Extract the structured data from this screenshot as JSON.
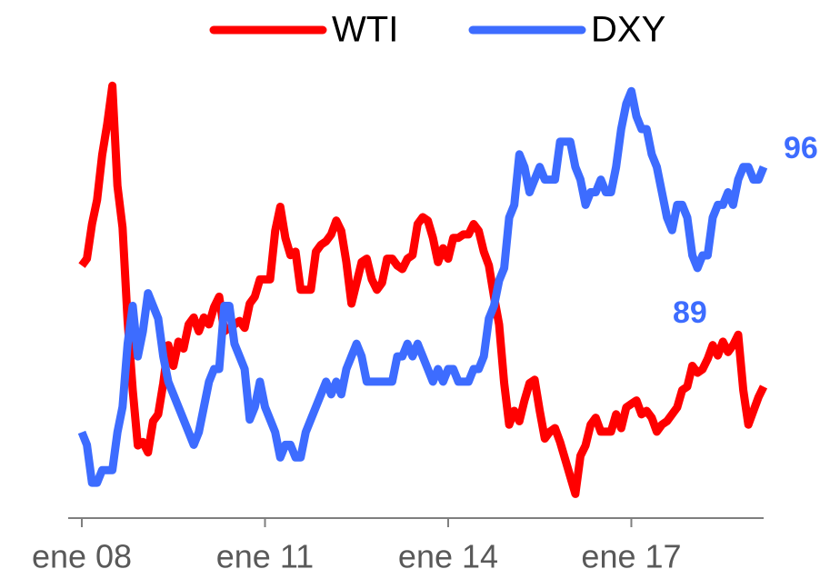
{
  "chart_data": {
    "type": "line",
    "x": [
      "2008-01",
      "2008-02",
      "2008-03",
      "2008-04",
      "2008-05",
      "2008-06",
      "2008-07",
      "2008-08",
      "2008-09",
      "2008-10",
      "2008-11",
      "2008-12",
      "2009-01",
      "2009-02",
      "2009-03",
      "2009-04",
      "2009-05",
      "2009-06",
      "2009-07",
      "2009-08",
      "2009-09",
      "2009-10",
      "2009-11",
      "2009-12",
      "2010-01",
      "2010-02",
      "2010-03",
      "2010-04",
      "2010-05",
      "2010-06",
      "2010-07",
      "2010-08",
      "2010-09",
      "2010-10",
      "2010-11",
      "2010-12",
      "2011-01",
      "2011-02",
      "2011-03",
      "2011-04",
      "2011-05",
      "2011-06",
      "2011-07",
      "2011-08",
      "2011-09",
      "2011-10",
      "2011-11",
      "2011-12",
      "2012-01",
      "2012-02",
      "2012-03",
      "2012-04",
      "2012-05",
      "2012-06",
      "2012-07",
      "2012-08",
      "2012-09",
      "2012-10",
      "2012-11",
      "2012-12",
      "2013-01",
      "2013-02",
      "2013-03",
      "2013-04",
      "2013-05",
      "2013-06",
      "2013-07",
      "2013-08",
      "2013-09",
      "2013-10",
      "2013-11",
      "2013-12",
      "2014-01",
      "2014-02",
      "2014-03",
      "2014-04",
      "2014-05",
      "2014-06",
      "2014-07",
      "2014-08",
      "2014-09",
      "2014-10",
      "2014-11",
      "2014-12",
      "2015-01",
      "2015-02",
      "2015-03",
      "2015-04",
      "2015-05",
      "2015-06",
      "2015-07",
      "2015-08",
      "2015-09",
      "2015-10",
      "2015-11",
      "2015-12",
      "2016-01",
      "2016-02",
      "2016-03",
      "2016-04",
      "2016-05",
      "2016-06",
      "2016-07",
      "2016-08",
      "2016-09",
      "2016-10",
      "2016-11",
      "2016-12",
      "2017-01",
      "2017-02",
      "2017-03",
      "2017-04",
      "2017-05",
      "2017-06",
      "2017-07",
      "2017-08",
      "2017-09",
      "2017-10",
      "2017-11",
      "2017-12",
      "2018-01",
      "2018-02",
      "2018-03",
      "2018-04",
      "2018-05",
      "2018-06",
      "2018-07",
      "2018-08",
      "2018-09",
      "2018-10",
      "2018-11",
      "2018-12",
      "2019-01",
      "2019-02",
      "2019-03"
    ],
    "series": [
      {
        "name": "WTI",
        "color": "#ff0000",
        "values": [
          93,
          95,
          105,
          112,
          125,
          134,
          145,
          116,
          104,
          77,
          57,
          41,
          42,
          39,
          48,
          50,
          59,
          70,
          64,
          71,
          69,
          76,
          78,
          74,
          78,
          76,
          81,
          84,
          74,
          75,
          76,
          77,
          75,
          82,
          84,
          89,
          89,
          89,
          103,
          110,
          101,
          96,
          97,
          86,
          86,
          86,
          97,
          99,
          100,
          102,
          106,
          103,
          94,
          82,
          88,
          94,
          95,
          89,
          86,
          88,
          95,
          95,
          93,
          92,
          95,
          96,
          105,
          107,
          106,
          101,
          94,
          98,
          95,
          101,
          101,
          102,
          102,
          105,
          103,
          97,
          93,
          84,
          76,
          59,
          47,
          51,
          48,
          54,
          59,
          60,
          51,
          43,
          45,
          46,
          42,
          37,
          32,
          27,
          38,
          41,
          47,
          49,
          45,
          45,
          45,
          50,
          46,
          52,
          53,
          54,
          50,
          51,
          49,
          45,
          47,
          48,
          50,
          52,
          57,
          58,
          64,
          62,
          63,
          66,
          70,
          67,
          71,
          68,
          70,
          73,
          57,
          47,
          51,
          55,
          58
        ]
      },
      {
        "name": "DXY",
        "color": "#3d6cff",
        "axis": "y2",
        "values": [
          76,
          75,
          72,
          72,
          73,
          73,
          73,
          76,
          78,
          83,
          86,
          82,
          84,
          87,
          86,
          85,
          82,
          80,
          79,
          78,
          77,
          76,
          75,
          76,
          78,
          80,
          81,
          81,
          86,
          86,
          83,
          82,
          81,
          77,
          78,
          80,
          78,
          77,
          76,
          74,
          75,
          75,
          74,
          74,
          76,
          77,
          78,
          79,
          80,
          79,
          80,
          79,
          81,
          82,
          83,
          82,
          80,
          80,
          80,
          80,
          80,
          80,
          82,
          82,
          83,
          82,
          83,
          82,
          81,
          80,
          81,
          80,
          81,
          81,
          80,
          80,
          80,
          81,
          81,
          82,
          85,
          86,
          88,
          89,
          93,
          94,
          98,
          97,
          95,
          96,
          97,
          96,
          96,
          96,
          99,
          99,
          99,
          97,
          96,
          94,
          95,
          95,
          96,
          95,
          95,
          97,
          100,
          102,
          103,
          101,
          100,
          100,
          98,
          97,
          95,
          93,
          92,
          94,
          94,
          93,
          90,
          89,
          90,
          90,
          93,
          94,
          94,
          95,
          94,
          96,
          97,
          97,
          96,
          96,
          97
        ]
      }
    ],
    "xlim": [
      "2008-01",
      "2019-03"
    ],
    "xticks": [
      {
        "value": "2008-01",
        "label": "ene 08"
      },
      {
        "value": "2011-01",
        "label": "ene 11"
      },
      {
        "value": "2014-01",
        "label": "ene 14"
      },
      {
        "value": "2017-01",
        "label": "ene 17"
      }
    ],
    "ylim": [
      20,
      154
    ],
    "y2lim": [
      69.2,
      105.9
    ],
    "annotations": [
      {
        "text": "96",
        "color": "#3d6cff"
      },
      {
        "text": "89",
        "color": "#3d6cff"
      }
    ],
    "legend": "top"
  }
}
